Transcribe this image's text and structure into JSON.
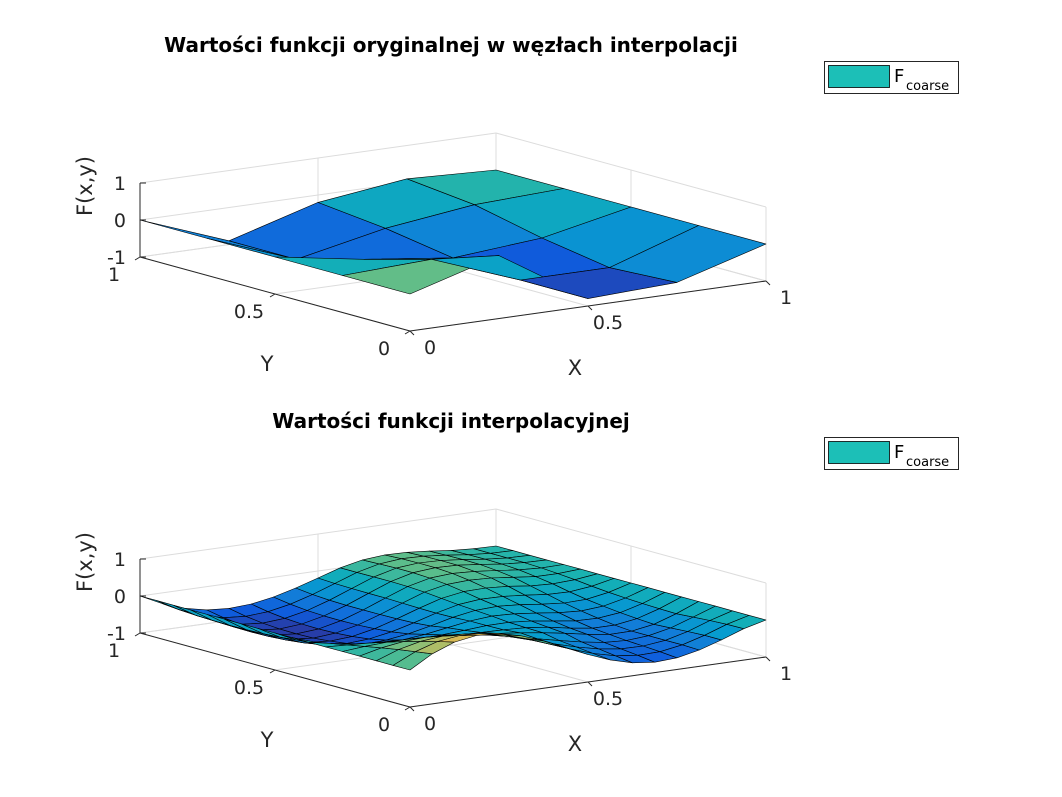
{
  "chart_data": [
    {
      "type": "surface",
      "title": "Wartości funkcji oryginalnej w węzłach interpolacji",
      "xlabel": "X",
      "ylabel": "Y",
      "zlabel": "F(x,y)",
      "xlim": [
        0,
        1
      ],
      "ylim": [
        0,
        1
      ],
      "zlim": [
        -1,
        1
      ],
      "x_ticks": [
        0,
        0.5,
        1
      ],
      "y_ticks": [
        0,
        0.5,
        1
      ],
      "z_ticks": [
        -1,
        0,
        1
      ],
      "x_tick_labels": [
        "0",
        "0.5",
        "1"
      ],
      "y_tick_labels": [
        "0",
        "0.5",
        "1"
      ],
      "z_tick_labels": [
        "-1",
        "0",
        "1"
      ],
      "colormap": "parula",
      "grid": true,
      "legend": {
        "placement": "outside-top-right",
        "label_main": "F",
        "label_sub": "coarse",
        "color": "#1cbfb7"
      },
      "x": [
        0,
        0.25,
        0.5,
        0.75,
        1
      ],
      "y": [
        0,
        0.25,
        0.5,
        0.75,
        1
      ],
      "z_rows_by_y": [
        [
          0,
          0.7,
          -0.8,
          -0.7,
          0
        ],
        [
          0,
          0.1,
          -0.8,
          -0.8,
          0
        ],
        [
          0,
          -0.4,
          -0.7,
          -0.5,
          0
        ],
        [
          0,
          -0.9,
          -0.4,
          -0.1,
          0
        ],
        [
          0,
          -0.9,
          -0.2,
          0.1,
          0
        ]
      ]
    },
    {
      "type": "surface",
      "title": "Wartości funkcji interpolacyjnej",
      "xlabel": "X",
      "ylabel": "Y",
      "zlabel": "F(x,y)",
      "xlim": [
        0,
        1
      ],
      "ylim": [
        0,
        1
      ],
      "zlim": [
        -1,
        1
      ],
      "x_ticks": [
        0,
        0.5,
        1
      ],
      "y_ticks": [
        0,
        0.5,
        1
      ],
      "z_ticks": [
        -1,
        0,
        1
      ],
      "x_tick_labels": [
        "0",
        "0.5",
        "1"
      ],
      "y_tick_labels": [
        "0",
        "0.5",
        "1"
      ],
      "z_tick_labels": [
        "-1",
        "0",
        "1"
      ],
      "colormap": "parula",
      "grid": true,
      "legend": {
        "placement": "outside-top-right",
        "label_main": "F",
        "label_sub": "coarse",
        "color": "#1cbfb7"
      },
      "x": [
        0,
        0.0625,
        0.125,
        0.1875,
        0.25,
        0.3125,
        0.375,
        0.4375,
        0.5,
        0.5625,
        0.625,
        0.6875,
        0.75,
        0.8125,
        0.875,
        0.9375,
        1
      ],
      "y": [
        0,
        0.0625,
        0.125,
        0.1875,
        0.25,
        0.3125,
        0.375,
        0.4375,
        0.5,
        0.5625,
        0.625,
        0.6875,
        0.75,
        0.8125,
        0.875,
        0.9375,
        1
      ],
      "z_rows_by_y": [
        [
          0,
          0.353,
          0.585,
          0.682,
          0.648,
          0.502,
          0.276,
          0.009,
          -0.258,
          -0.488,
          -0.649,
          -0.717,
          -0.683,
          -0.558,
          -0.368,
          -0.151,
          0
        ],
        [
          0,
          0.286,
          0.475,
          0.553,
          0.523,
          0.402,
          0.214,
          -0.01,
          -0.238,
          -0.439,
          -0.585,
          -0.657,
          -0.643,
          -0.542,
          -0.37,
          -0.157,
          0
        ],
        [
          0,
          0.216,
          0.357,
          0.413,
          0.386,
          0.29,
          0.142,
          -0.035,
          -0.219,
          -0.389,
          -0.524,
          -0.605,
          -0.616,
          -0.545,
          -0.393,
          -0.18,
          0
        ],
        [
          0,
          0.14,
          0.229,
          0.259,
          0.234,
          0.163,
          0.056,
          -0.071,
          -0.207,
          -0.341,
          -0.463,
          -0.557,
          -0.591,
          -0.547,
          -0.419,
          -0.211,
          0
        ],
        [
          0,
          0.054,
          0.082,
          0.081,
          0.056,
          0.013,
          -0.042,
          -0.102,
          -0.17,
          -0.252,
          -0.352,
          -0.465,
          -0.55,
          -0.547,
          -0.446,
          -0.244,
          0
        ],
        [
          0,
          -0.031,
          -0.063,
          -0.097,
          -0.13,
          -0.159,
          -0.184,
          -0.201,
          -0.214,
          -0.242,
          -0.314,
          -0.423,
          -0.508,
          -0.51,
          -0.419,
          -0.236,
          0
        ],
        [
          0,
          -0.118,
          -0.213,
          -0.28,
          -0.318,
          -0.324,
          -0.306,
          -0.267,
          -0.225,
          -0.22,
          -0.269,
          -0.357,
          -0.433,
          -0.449,
          -0.38,
          -0.22,
          0
        ],
        [
          0,
          -0.203,
          -0.356,
          -0.455,
          -0.497,
          -0.48,
          -0.418,
          -0.322,
          -0.225,
          -0.179,
          -0.2,
          -0.266,
          -0.341,
          -0.377,
          -0.331,
          -0.197,
          0
        ],
        [
          0,
          -0.277,
          -0.477,
          -0.597,
          -0.641,
          -0.614,
          -0.528,
          -0.398,
          -0.25,
          -0.148,
          -0.123,
          -0.165,
          -0.235,
          -0.287,
          -0.271,
          -0.168,
          0
        ],
        [
          0,
          -0.326,
          -0.557,
          -0.695,
          -0.744,
          -0.708,
          -0.599,
          -0.44,
          -0.263,
          -0.118,
          -0.055,
          -0.064,
          -0.118,
          -0.18,
          -0.193,
          -0.127,
          0
        ],
        [
          0,
          -0.356,
          -0.608,
          -0.758,
          -0.808,
          -0.765,
          -0.641,
          -0.458,
          -0.255,
          -0.074,
          0.025,
          0.036,
          0.0,
          -0.075,
          -0.104,
          -0.076,
          0
        ],
        [
          0,
          -0.372,
          -0.638,
          -0.796,
          -0.85,
          -0.799,
          -0.665,
          -0.466,
          -0.242,
          -0.031,
          0.093,
          0.124,
          0.098,
          0.033,
          -0.034,
          -0.036,
          0
        ],
        [
          0,
          -0.378,
          -0.648,
          -0.808,
          -0.86,
          -0.812,
          -0.674,
          -0.467,
          -0.229,
          -0.003,
          0.138,
          0.181,
          0.152,
          0.09,
          0.025,
          -0.008,
          0
        ],
        [
          0,
          -0.373,
          -0.64,
          -0.799,
          -0.852,
          -0.805,
          -0.67,
          -0.468,
          -0.229,
          0.006,
          0.16,
          0.211,
          0.193,
          0.13,
          0.055,
          0.01,
          0
        ],
        [
          0,
          -0.358,
          -0.615,
          -0.768,
          -0.82,
          -0.776,
          -0.648,
          -0.455,
          -0.224,
          0.007,
          0.159,
          0.214,
          0.196,
          0.136,
          0.061,
          0.014,
          0
        ],
        [
          0,
          -0.331,
          -0.57,
          -0.714,
          -0.762,
          -0.722,
          -0.604,
          -0.426,
          -0.213,
          0.004,
          0.148,
          0.203,
          0.188,
          0.13,
          0.058,
          0.013,
          0
        ],
        [
          0,
          -0.29,
          -0.502,
          -0.63,
          -0.673,
          -0.638,
          -0.534,
          -0.376,
          -0.188,
          0.003,
          0.131,
          0.181,
          0.167,
          0.115,
          0.051,
          0.011,
          0
        ]
      ]
    }
  ]
}
